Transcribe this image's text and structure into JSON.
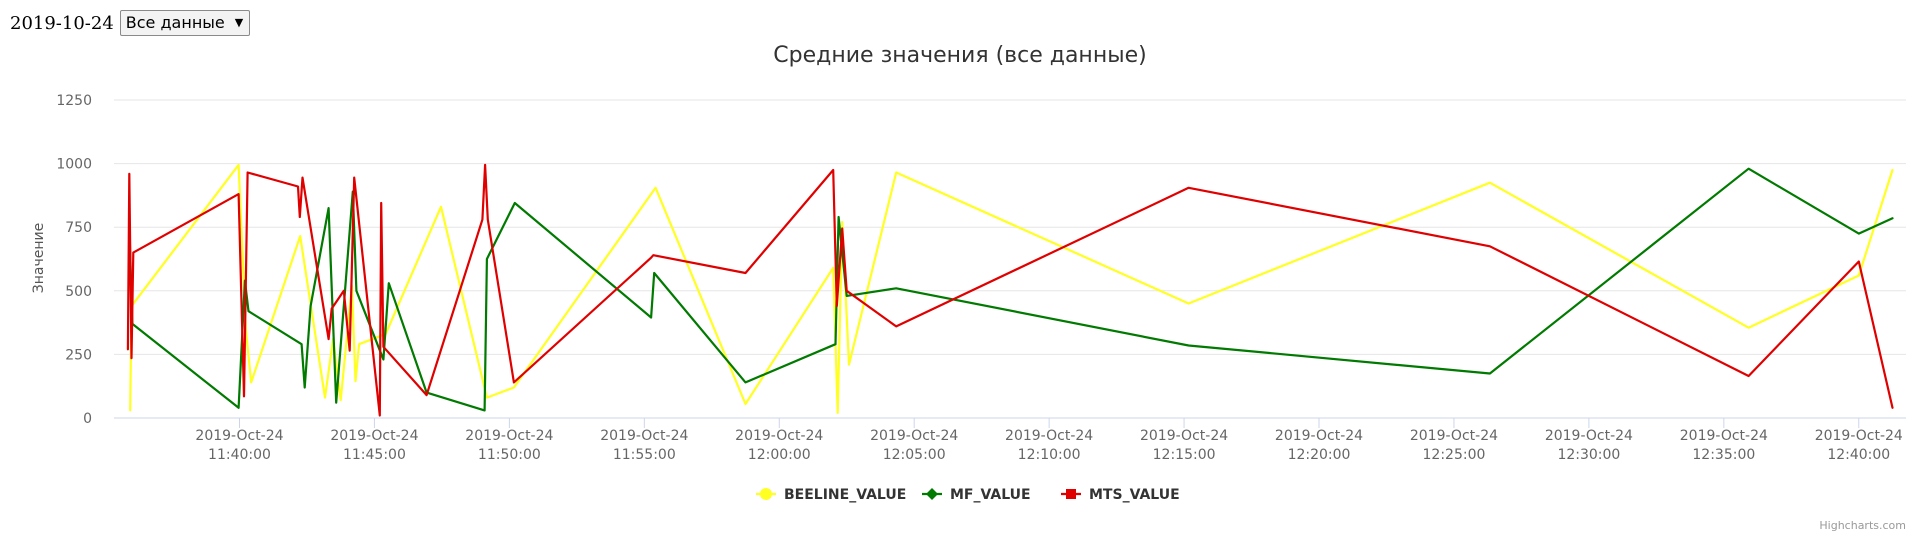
{
  "toolbar": {
    "date": "2019-10-24",
    "select_value": "Все данные"
  },
  "credits": "Highcharts.com",
  "colors": {
    "BEELINE_VALUE": "#ffff22",
    "MF_VALUE": "#007a00",
    "MTS_VALUE": "#e00000",
    "grid": "#e6e6e6",
    "axis_text": "#666666",
    "title": "#333333"
  },
  "chart_data": {
    "type": "line",
    "title": "Средние значения (все данные)",
    "xlabel": "",
    "ylabel": "Значение",
    "ylim": [
      0,
      1250
    ],
    "yticks": [
      0,
      250,
      500,
      750,
      1000,
      1250
    ],
    "yticklabels": [
      "0",
      "250",
      "500",
      "750",
      "1000",
      "1250"
    ],
    "xlim": [
      "2019-10-24 11:35:21",
      "2019-10-24 12:41:45"
    ],
    "xticks": [
      "2019-10-24 11:40:00",
      "2019-10-24 11:45:00",
      "2019-10-24 11:50:00",
      "2019-10-24 11:55:00",
      "2019-10-24 12:00:00",
      "2019-10-24 12:05:00",
      "2019-10-24 12:10:00",
      "2019-10-24 12:15:00",
      "2019-10-24 12:20:00",
      "2019-10-24 12:25:00",
      "2019-10-24 12:30:00",
      "2019-10-24 12:35:00",
      "2019-10-24 12:40:00"
    ],
    "xticklabels_date": [
      "2019-Oct-24",
      "2019-Oct-24",
      "2019-Oct-24",
      "2019-Oct-24",
      "2019-Oct-24",
      "2019-Oct-24",
      "2019-Oct-24",
      "2019-Oct-24",
      "2019-Oct-24",
      "2019-Oct-24",
      "2019-Oct-24",
      "2019-Oct-24",
      "2019-Oct-24"
    ],
    "xticklabels_time": [
      "11:40:00",
      "11:45:00",
      "11:50:00",
      "11:55:00",
      "12:00:00",
      "12:05:00",
      "12:10:00",
      "12:15:00",
      "12:20:00",
      "12:25:00",
      "12:30:00",
      "12:35:00",
      "12:40:00"
    ],
    "grid": true,
    "legend_position": "bottom-center",
    "series": [
      {
        "name": "BEELINE_VALUE",
        "color": "#ffff22",
        "marker": "circle",
        "points": [
          [
            "2019-10-24 11:35:57",
            30
          ],
          [
            "2019-10-24 11:36:00",
            440
          ],
          [
            "2019-10-24 11:39:58",
            995
          ],
          [
            "2019-10-24 11:40:14",
            350
          ],
          [
            "2019-10-24 11:40:26",
            140
          ],
          [
            "2019-10-24 11:42:15",
            715
          ],
          [
            "2019-10-24 11:43:10",
            80
          ],
          [
            "2019-10-24 11:43:28",
            310
          ],
          [
            "2019-10-24 11:43:45",
            70
          ],
          [
            "2019-10-24 11:44:10",
            520
          ],
          [
            "2019-10-24 11:44:18",
            145
          ],
          [
            "2019-10-24 11:44:26",
            290
          ],
          [
            "2019-10-24 11:45:25",
            330
          ],
          [
            "2019-10-24 11:47:28",
            830
          ],
          [
            "2019-10-24 11:49:10",
            80
          ],
          [
            "2019-10-24 11:50:10",
            120
          ],
          [
            "2019-10-24 11:55:25",
            905
          ],
          [
            "2019-10-24 11:58:45",
            55
          ],
          [
            "2019-10-24 12:02:00",
            590
          ],
          [
            "2019-10-24 12:02:10",
            20
          ],
          [
            "2019-10-24 12:02:20",
            770
          ],
          [
            "2019-10-24 12:02:35",
            210
          ],
          [
            "2019-10-24 12:04:20",
            965
          ],
          [
            "2019-10-24 12:15:10",
            450
          ],
          [
            "2019-10-24 12:26:20",
            925
          ],
          [
            "2019-10-24 12:35:55",
            355
          ],
          [
            "2019-10-24 12:40:00",
            560
          ],
          [
            "2019-10-24 12:41:15",
            975
          ]
        ]
      },
      {
        "name": "MF_VALUE",
        "color": "#007a00",
        "marker": "diamond",
        "points": [
          [
            "2019-10-24 11:35:55",
            760
          ],
          [
            "2019-10-24 11:36:02",
            370
          ],
          [
            "2019-10-24 11:39:58",
            40
          ],
          [
            "2019-10-24 11:40:12",
            540
          ],
          [
            "2019-10-24 11:40:20",
            420
          ],
          [
            "2019-10-24 11:42:18",
            290
          ],
          [
            "2019-10-24 11:42:25",
            120
          ],
          [
            "2019-10-24 11:42:38",
            440
          ],
          [
            "2019-10-24 11:43:18",
            825
          ],
          [
            "2019-10-24 11:43:35",
            60
          ],
          [
            "2019-10-24 11:44:12",
            890
          ],
          [
            "2019-10-24 11:44:20",
            500
          ],
          [
            "2019-10-24 11:45:20",
            230
          ],
          [
            "2019-10-24 11:45:32",
            530
          ],
          [
            "2019-10-24 11:46:56",
            100
          ],
          [
            "2019-10-24 11:49:05",
            30
          ],
          [
            "2019-10-24 11:49:10",
            625
          ],
          [
            "2019-10-24 11:50:12",
            845
          ],
          [
            "2019-10-24 11:55:15",
            395
          ],
          [
            "2019-10-24 11:55:22",
            570
          ],
          [
            "2019-10-24 11:58:45",
            140
          ],
          [
            "2019-10-24 12:02:05",
            290
          ],
          [
            "2019-10-24 12:02:12",
            790
          ],
          [
            "2019-10-24 12:02:30",
            480
          ],
          [
            "2019-10-24 12:04:20",
            510
          ],
          [
            "2019-10-24 12:15:10",
            285
          ],
          [
            "2019-10-24 12:26:20",
            175
          ],
          [
            "2019-10-24 12:35:55",
            980
          ],
          [
            "2019-10-24 12:40:00",
            725
          ],
          [
            "2019-10-24 12:41:15",
            785
          ]
        ]
      },
      {
        "name": "MTS_VALUE",
        "color": "#e00000",
        "marker": "square",
        "points": [
          [
            "2019-10-24 11:35:52",
            270
          ],
          [
            "2019-10-24 11:35:55",
            960
          ],
          [
            "2019-10-24 11:36:00",
            235
          ],
          [
            "2019-10-24 11:36:04",
            650
          ],
          [
            "2019-10-24 11:39:58",
            880
          ],
          [
            "2019-10-24 11:40:10",
            85
          ],
          [
            "2019-10-24 11:40:18",
            965
          ],
          [
            "2019-10-24 11:42:10",
            910
          ],
          [
            "2019-10-24 11:42:14",
            790
          ],
          [
            "2019-10-24 11:42:20",
            945
          ],
          [
            "2019-10-24 11:43:18",
            310
          ],
          [
            "2019-10-24 11:43:25",
            430
          ],
          [
            "2019-10-24 11:43:52",
            500
          ],
          [
            "2019-10-24 11:44:05",
            265
          ],
          [
            "2019-10-24 11:44:15",
            945
          ],
          [
            "2019-10-24 11:45:12",
            10
          ],
          [
            "2019-10-24 11:45:15",
            845
          ],
          [
            "2019-10-24 11:45:20",
            280
          ],
          [
            "2019-10-24 11:46:56",
            90
          ],
          [
            "2019-10-24 11:49:00",
            780
          ],
          [
            "2019-10-24 11:49:06",
            995
          ],
          [
            "2019-10-24 11:49:12",
            780
          ],
          [
            "2019-10-24 11:50:10",
            140
          ],
          [
            "2019-10-24 11:55:15",
            630
          ],
          [
            "2019-10-24 11:55:20",
            640
          ],
          [
            "2019-10-24 11:58:45",
            570
          ],
          [
            "2019-10-24 12:02:00",
            975
          ],
          [
            "2019-10-24 12:02:08",
            440
          ],
          [
            "2019-10-24 12:02:20",
            745
          ],
          [
            "2019-10-24 12:02:30",
            500
          ],
          [
            "2019-10-24 12:04:20",
            360
          ],
          [
            "2019-10-24 12:15:10",
            905
          ],
          [
            "2019-10-24 12:26:20",
            675
          ],
          [
            "2019-10-24 12:35:55",
            165
          ],
          [
            "2019-10-24 12:40:00",
            615
          ],
          [
            "2019-10-24 12:41:15",
            40
          ]
        ]
      }
    ]
  }
}
